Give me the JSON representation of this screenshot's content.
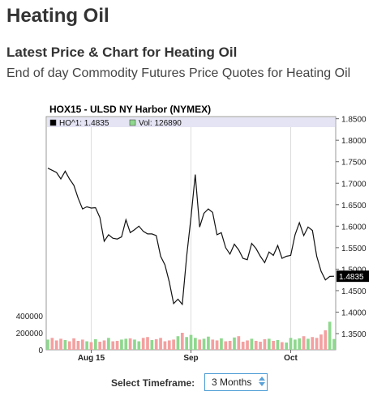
{
  "header": {
    "title": "Heating Oil",
    "subtitle": "Latest Price & Chart for Heating Oil",
    "description": "End of day Commodity Futures Price Quotes for Heating Oil"
  },
  "controls": {
    "timeframe_label": "Select Timeframe:",
    "timeframe_value": "3 Months"
  },
  "chart_data": {
    "type": "line",
    "title": "HOX15 - ULSD NY Harbor (NYMEX)",
    "legend": [
      {
        "label": "HO^1: 1.4835",
        "color": "#000000"
      },
      {
        "label": "Vol: 126890",
        "color": "#8fd88f"
      }
    ],
    "last_price_label": "1.4835",
    "price_ylim": [
      1.35,
      1.855
    ],
    "price_ticks": [
      "1.8500",
      "1.8000",
      "1.7500",
      "1.7000",
      "1.6500",
      "1.6000",
      "1.5500",
      "1.5000",
      "1.4500",
      "1.4000",
      "1.3500"
    ],
    "volume_ticks": [
      "400000",
      "200000",
      "0"
    ],
    "x_tick_labels": [
      "Aug 15",
      "Sep",
      "Oct"
    ],
    "x_tick_index": [
      10,
      33,
      56
    ],
    "price_series": [
      1.735,
      1.73,
      1.725,
      1.71,
      1.728,
      1.71,
      1.695,
      1.665,
      1.64,
      1.645,
      1.642,
      1.643,
      1.62,
      1.565,
      1.58,
      1.572,
      1.57,
      1.575,
      1.615,
      1.585,
      1.592,
      1.6,
      1.588,
      1.582,
      1.582,
      1.578,
      1.53,
      1.51,
      1.47,
      1.42,
      1.43,
      1.418,
      1.53,
      1.62,
      1.72,
      1.598,
      1.63,
      1.64,
      1.632,
      1.58,
      1.585,
      1.55,
      1.535,
      1.558,
      1.545,
      1.525,
      1.522,
      1.56,
      1.548,
      1.53,
      1.515,
      1.54,
      1.532,
      1.555,
      1.525,
      1.53,
      1.532,
      1.58,
      1.608,
      1.578,
      1.598,
      1.59,
      1.53,
      1.495,
      1.475,
      1.483,
      1.4835
    ],
    "volume_series": [
      120000,
      140000,
      110000,
      130000,
      115000,
      100000,
      135000,
      105000,
      120000,
      100000,
      90000,
      125000,
      95000,
      110000,
      140000,
      100000,
      105000,
      120000,
      130000,
      135000,
      120000,
      100000,
      140000,
      150000,
      115000,
      125000,
      140000,
      100000,
      110000,
      120000,
      160000,
      200000,
      150000,
      175000,
      140000,
      120000,
      130000,
      155000,
      120000,
      110000,
      135000,
      100000,
      105000,
      145000,
      160000,
      95000,
      110000,
      130000,
      105000,
      95000,
      125000,
      130000,
      105000,
      115000,
      90000,
      85000,
      140000,
      120000,
      135000,
      160000,
      130000,
      150000,
      140000,
      180000,
      230000,
      330000,
      126890
    ],
    "volume_colors_up": "#8fd88f",
    "volume_colors_down": "#f4a0a0",
    "grid": true
  }
}
